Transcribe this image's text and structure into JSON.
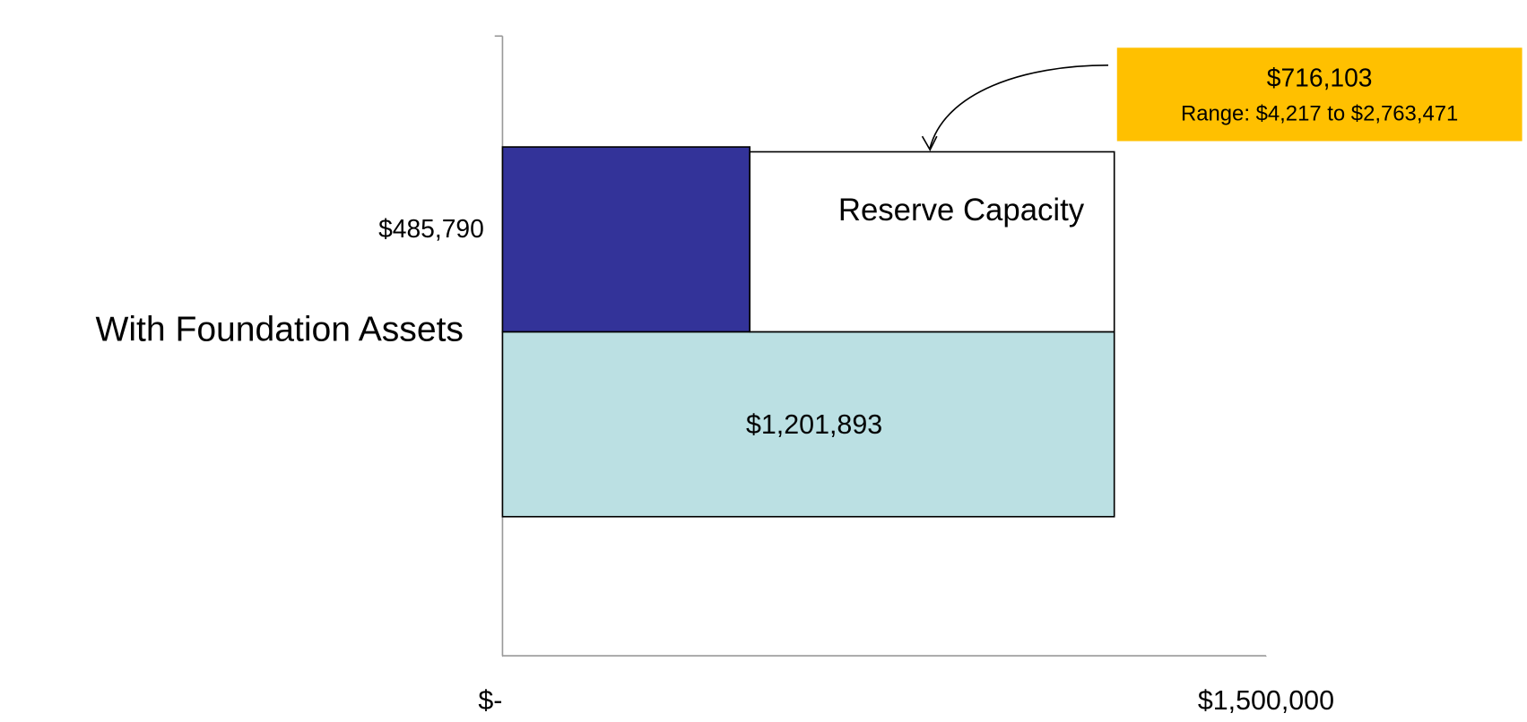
{
  "chart_data": {
    "type": "bar",
    "orientation": "horizontal",
    "categories": [
      "With Foundation Assets"
    ],
    "series": [
      {
        "values": [
          485790
        ],
        "value_labels": [
          "$485,790"
        ],
        "color": "#333399"
      },
      {
        "name": "Reserve Capacity",
        "values": [
          716103
        ],
        "value_labels": [
          "$716,103"
        ],
        "color": "#ffffff"
      },
      {
        "values": [
          1201893
        ],
        "value_labels": [
          "$1,201,893"
        ],
        "color": "#bbe0e3"
      }
    ],
    "annotations": [
      "Range: $4,217 to $2,763,471"
    ],
    "annotation_color": "#ffc000",
    "xlim": [
      0,
      1500000
    ],
    "xticks": [
      {
        "value": 0,
        "label": "$-"
      },
      {
        "value": 1500000,
        "label": "$1,500,000"
      }
    ]
  }
}
